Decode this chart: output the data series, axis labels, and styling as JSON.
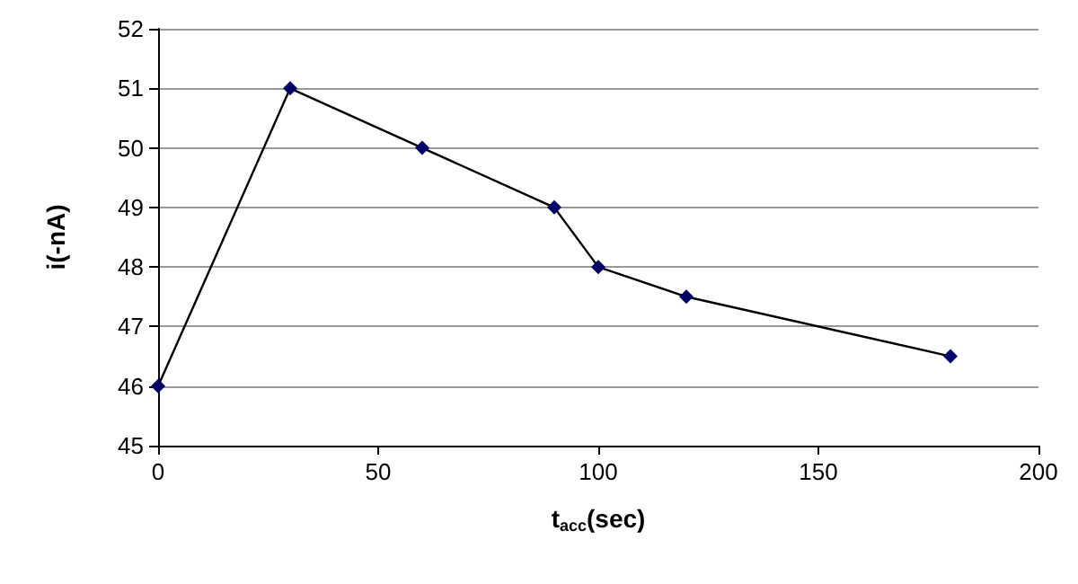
{
  "chart_data": {
    "type": "line",
    "xlabel": "t$_{acc}$(sec)",
    "ylabel": "i(-nA)",
    "x": [
      0,
      30,
      60,
      90,
      100,
      120,
      180
    ],
    "series": [
      {
        "color": "#000066",
        "values": [
          46,
          51,
          50,
          49,
          48,
          47.5,
          46.5
        ]
      }
    ],
    "xlim": [
      0,
      200
    ],
    "xticks": [
      0,
      50,
      100,
      150,
      200
    ],
    "ylim": [
      45,
      52
    ],
    "yticks": [
      45,
      46,
      47,
      48,
      49,
      50,
      51,
      52
    ],
    "grid": "y",
    "marker": "diamond",
    "line_style": "solid"
  }
}
